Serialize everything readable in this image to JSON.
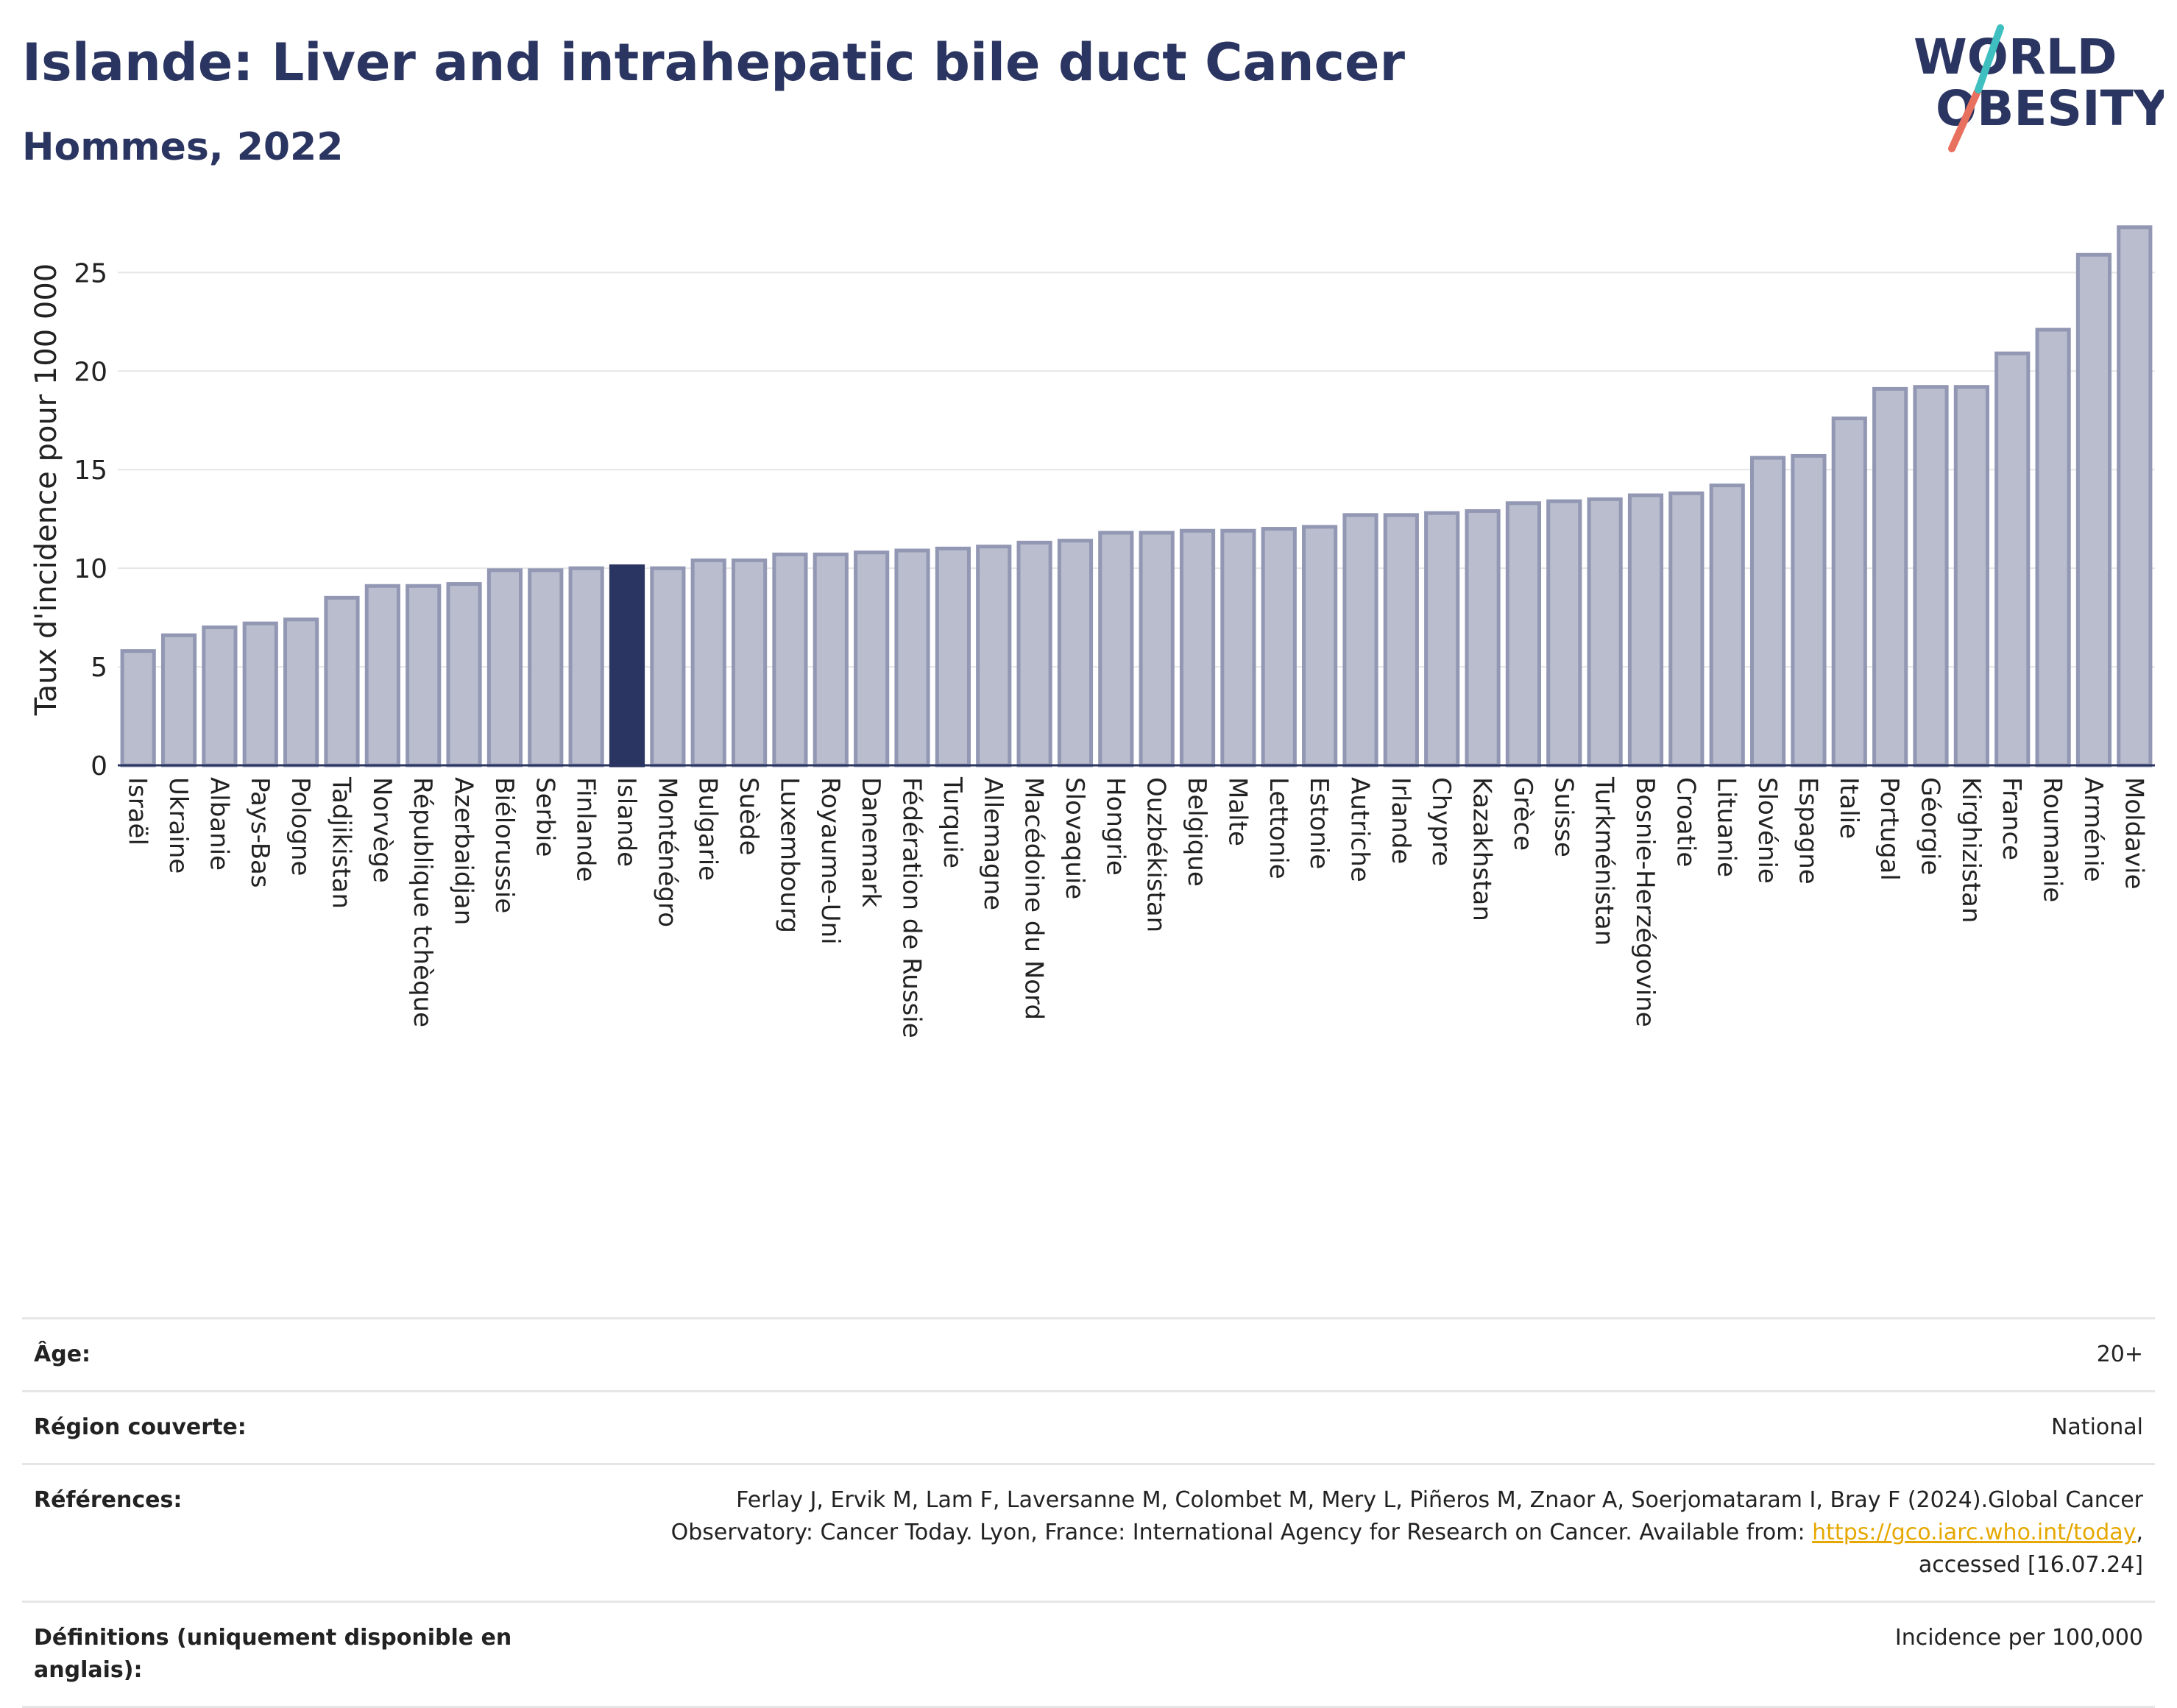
{
  "header": {
    "title": "Islande: Liver and intrahepatic bile duct Cancer",
    "subtitle": "Hommes, 2022",
    "logo_line1": "WORLD",
    "logo_line2": "OBESITY"
  },
  "chart_data": {
    "type": "bar",
    "ylabel": "Taux d'incidence pour 100 000",
    "ylim": [
      0,
      28
    ],
    "yticks": [
      0,
      5,
      10,
      15,
      20,
      25
    ],
    "grid": true,
    "highlight": "Islande",
    "bar_color": "#b9bdcd",
    "bar_edge_color": "#9297b3",
    "highlight_color": "#2b3561",
    "categories": [
      "Israël",
      "Ukraine",
      "Albanie",
      "Pays-Bas",
      "Pologne",
      "Tadjikistan",
      "Norvège",
      "République tchèque",
      "Azerbaidjan",
      "Biélorussie",
      "Serbie",
      "Finlande",
      "Islande",
      "Monténégro",
      "Bulgarie",
      "Suède",
      "Luxembourg",
      "Royaume-Uni",
      "Danemark",
      "Fédération de Russie",
      "Turquie",
      "Allemagne",
      "Macédoine du Nord",
      "Slovaquie",
      "Hongrie",
      "Ouzbékistan",
      "Belgique",
      "Malte",
      "Lettonie",
      "Estonie",
      "Autriche",
      "Irlande",
      "Chypre",
      "Kazakhstan",
      "Grèce",
      "Suisse",
      "Turkménistan",
      "Bosnie-Herzégovine",
      "Croatie",
      "Lituanie",
      "Slovénie",
      "Espagne",
      "Italie",
      "Portugal",
      "Géorgie",
      "Kirghizistan",
      "France",
      "Roumanie",
      "Arménie",
      "Moldavie"
    ],
    "values": [
      5.8,
      6.6,
      7.0,
      7.2,
      7.4,
      8.5,
      9.1,
      9.1,
      9.2,
      9.9,
      9.9,
      10.0,
      10.1,
      10.0,
      10.4,
      10.4,
      10.7,
      10.7,
      10.8,
      10.9,
      11.0,
      11.1,
      11.3,
      11.4,
      11.8,
      11.8,
      11.9,
      11.9,
      12.0,
      12.1,
      12.7,
      12.7,
      12.8,
      12.9,
      13.3,
      13.4,
      13.5,
      13.7,
      13.8,
      14.2,
      15.6,
      15.7,
      17.6,
      19.1,
      19.2,
      19.2,
      20.9,
      22.1,
      25.9,
      27.3
    ]
  },
  "info": {
    "age_label": "Âge:",
    "age_value": "20+",
    "region_label": "Région couverte:",
    "region_value": "National",
    "refs_label": "Références:",
    "refs_text": "Ferlay J, Ervik M, Lam F, Laversanne M, Colombet M, Mery L, Piñeros M, Znaor A, Soerjomataram I, Bray F (2024).Global Cancer Observatory: Cancer Today. Lyon, France: International Agency for Research on Cancer. Available from: ",
    "refs_link": "https://gco.iarc.who.int/today",
    "refs_tail": ", accessed [16.07.24]",
    "defs_label": "Définitions (uniquement disponible en anglais):",
    "defs_value": "Incidence per 100,000"
  }
}
